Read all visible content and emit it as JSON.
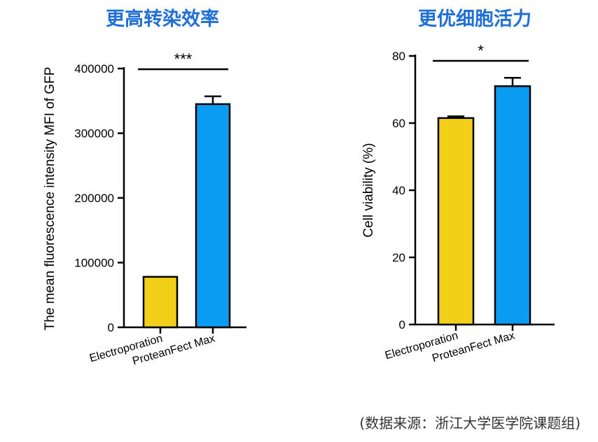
{
  "source_note": "(数据来源：浙江大学医学院课题组)",
  "colors": {
    "title": "#1f6fd6",
    "electroporation": "#f2d01a",
    "proteanfect": "#0a9cf2",
    "axis": "#000000"
  },
  "chart_data": [
    {
      "type": "bar",
      "title": "更高转染效率",
      "ylabel": "The mean fluorescence intensity MFI of GFP",
      "xlabel": "",
      "categories": [
        "Electroporation",
        "ProteanFect Max"
      ],
      "values": [
        78000,
        345000
      ],
      "errors": [
        0,
        12000
      ],
      "ylim": [
        0,
        400000
      ],
      "yticks": [
        0,
        100000,
        200000,
        300000,
        400000
      ],
      "ytick_labels": [
        "0",
        "100000",
        "200000",
        "300000",
        "400000"
      ],
      "significance": "***",
      "bar_colors": [
        "#f2d01a",
        "#0a9cf2"
      ]
    },
    {
      "type": "bar",
      "title": "更优细胞活力",
      "ylabel": "Cell viability (%)",
      "xlabel": "",
      "categories": [
        "Electroporation",
        "ProteanFect Max"
      ],
      "values": [
        61.5,
        71
      ],
      "errors": [
        0.5,
        2.5
      ],
      "ylim": [
        0,
        80
      ],
      "yticks": [
        0,
        20,
        40,
        60,
        80
      ],
      "ytick_labels": [
        "0",
        "20",
        "40",
        "60",
        "80"
      ],
      "significance": "*",
      "bar_colors": [
        "#f2d01a",
        "#0a9cf2"
      ]
    }
  ]
}
